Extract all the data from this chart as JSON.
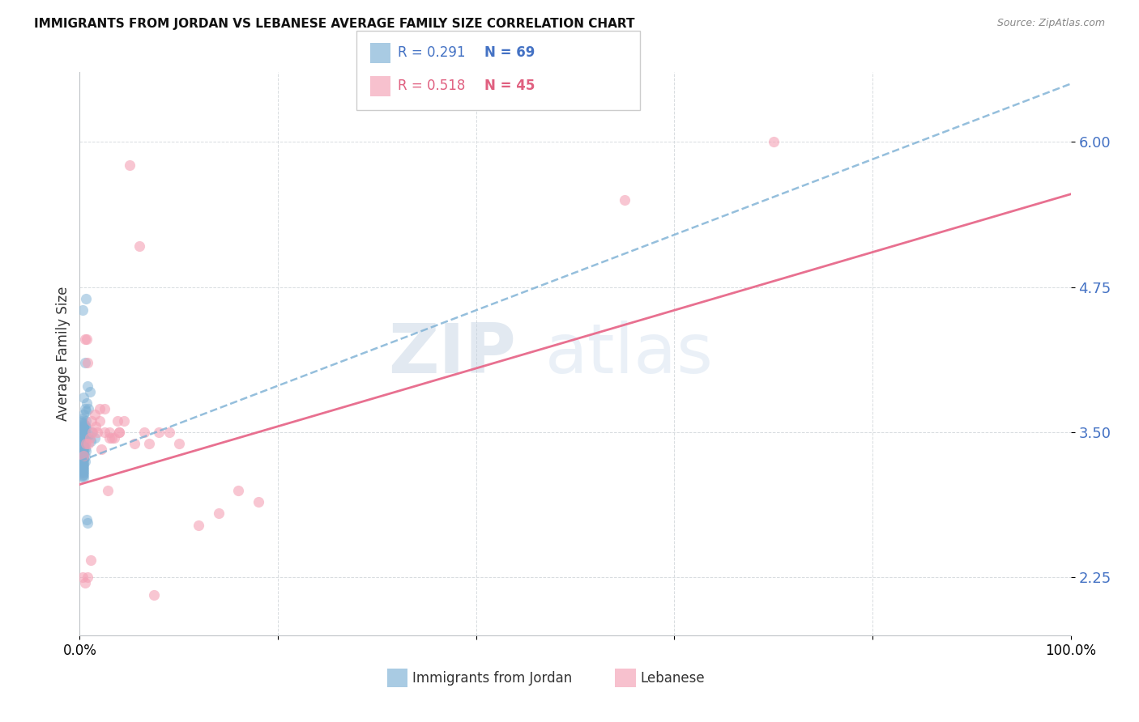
{
  "title": "IMMIGRANTS FROM JORDAN VS LEBANESE AVERAGE FAMILY SIZE CORRELATION CHART",
  "source": "Source: ZipAtlas.com",
  "ylabel": "Average Family Size",
  "yticks": [
    2.25,
    3.5,
    4.75,
    6.0
  ],
  "ytick_labels": [
    "2.25",
    "3.50",
    "4.75",
    "6.00"
  ],
  "jordan_color": "#7bafd4",
  "lebanese_color": "#f4a0b5",
  "jordan_line_color": "#7bafd4",
  "lebanese_line_color": "#e87090",
  "legend_label_jordan": "Immigrants from Jordan",
  "legend_label_lebanese": "Lebanese",
  "watermark_zip": "ZIP",
  "watermark_atlas": "atlas",
  "xmin": 0.0,
  "xmax": 100.0,
  "ymin": 1.75,
  "ymax": 6.6,
  "jordan_x": [
    0.3,
    0.6,
    0.5,
    0.8,
    1.0,
    0.4,
    0.7,
    0.9,
    0.5,
    0.6,
    0.4,
    0.3,
    0.2,
    0.3,
    0.4,
    0.5,
    0.4,
    0.5,
    0.6,
    0.4,
    0.3,
    0.4,
    0.5,
    0.3,
    0.4,
    0.5,
    0.3,
    0.4,
    0.5,
    0.4,
    0.3,
    0.4,
    0.5,
    0.4,
    0.3,
    0.4,
    0.5,
    0.4,
    0.6,
    0.3,
    0.4,
    0.3,
    0.4,
    0.5,
    0.3,
    0.4,
    0.3,
    0.5,
    0.4,
    0.3,
    0.4,
    0.3,
    0.4,
    0.3,
    0.4,
    0.3,
    0.4,
    0.3,
    0.4,
    0.3,
    0.3,
    0.4,
    1.2,
    1.5,
    0.9,
    1.1,
    0.7,
    0.8,
    0.6
  ],
  "jordan_y": [
    4.55,
    4.65,
    4.1,
    3.9,
    3.85,
    3.8,
    3.75,
    3.7,
    3.7,
    3.68,
    3.65,
    3.62,
    3.6,
    3.58,
    3.57,
    3.56,
    3.55,
    3.55,
    3.54,
    3.53,
    3.52,
    3.51,
    3.5,
    3.49,
    3.48,
    3.47,
    3.46,
    3.45,
    3.44,
    3.43,
    3.42,
    3.41,
    3.4,
    3.39,
    3.38,
    3.37,
    3.36,
    3.35,
    3.34,
    3.33,
    3.32,
    3.31,
    3.3,
    3.29,
    3.28,
    3.27,
    3.26,
    3.25,
    3.24,
    3.23,
    3.22,
    3.21,
    3.2,
    3.19,
    3.18,
    3.17,
    3.16,
    3.15,
    3.14,
    3.13,
    3.12,
    3.11,
    3.5,
    3.45,
    3.48,
    3.42,
    2.75,
    2.72,
    3.6
  ],
  "lebanese_x": [
    0.5,
    0.6,
    0.8,
    1.0,
    1.2,
    1.5,
    1.8,
    2.0,
    2.2,
    2.5,
    2.8,
    3.0,
    3.2,
    3.5,
    3.8,
    4.0,
    4.5,
    5.0,
    5.5,
    6.0,
    6.5,
    7.0,
    7.5,
    8.0,
    9.0,
    10.0,
    12.0,
    14.0,
    16.0,
    18.0,
    0.4,
    0.7,
    0.9,
    1.1,
    1.3,
    1.6,
    2.0,
    2.5,
    3.0,
    4.0,
    0.3,
    0.5,
    0.8,
    55.0,
    70.0
  ],
  "lebanese_y": [
    4.3,
    3.4,
    4.1,
    3.45,
    3.6,
    3.65,
    3.5,
    3.6,
    3.35,
    3.7,
    3.0,
    3.5,
    3.45,
    3.45,
    3.6,
    3.5,
    3.6,
    5.8,
    3.4,
    5.1,
    3.5,
    3.4,
    2.1,
    3.5,
    3.5,
    3.4,
    2.7,
    2.8,
    3.0,
    2.9,
    3.3,
    4.3,
    3.4,
    2.4,
    3.5,
    3.55,
    3.7,
    3.5,
    3.45,
    3.5,
    2.25,
    2.2,
    2.25,
    5.5,
    6.0
  ],
  "jordan_reg_x0": 0.0,
  "jordan_reg_x1": 100.0,
  "jordan_reg_y0": 3.25,
  "jordan_reg_y1": 6.5,
  "lebanese_reg_x0": 0.0,
  "lebanese_reg_x1": 100.0,
  "lebanese_reg_y0": 3.05,
  "lebanese_reg_y1": 5.55
}
